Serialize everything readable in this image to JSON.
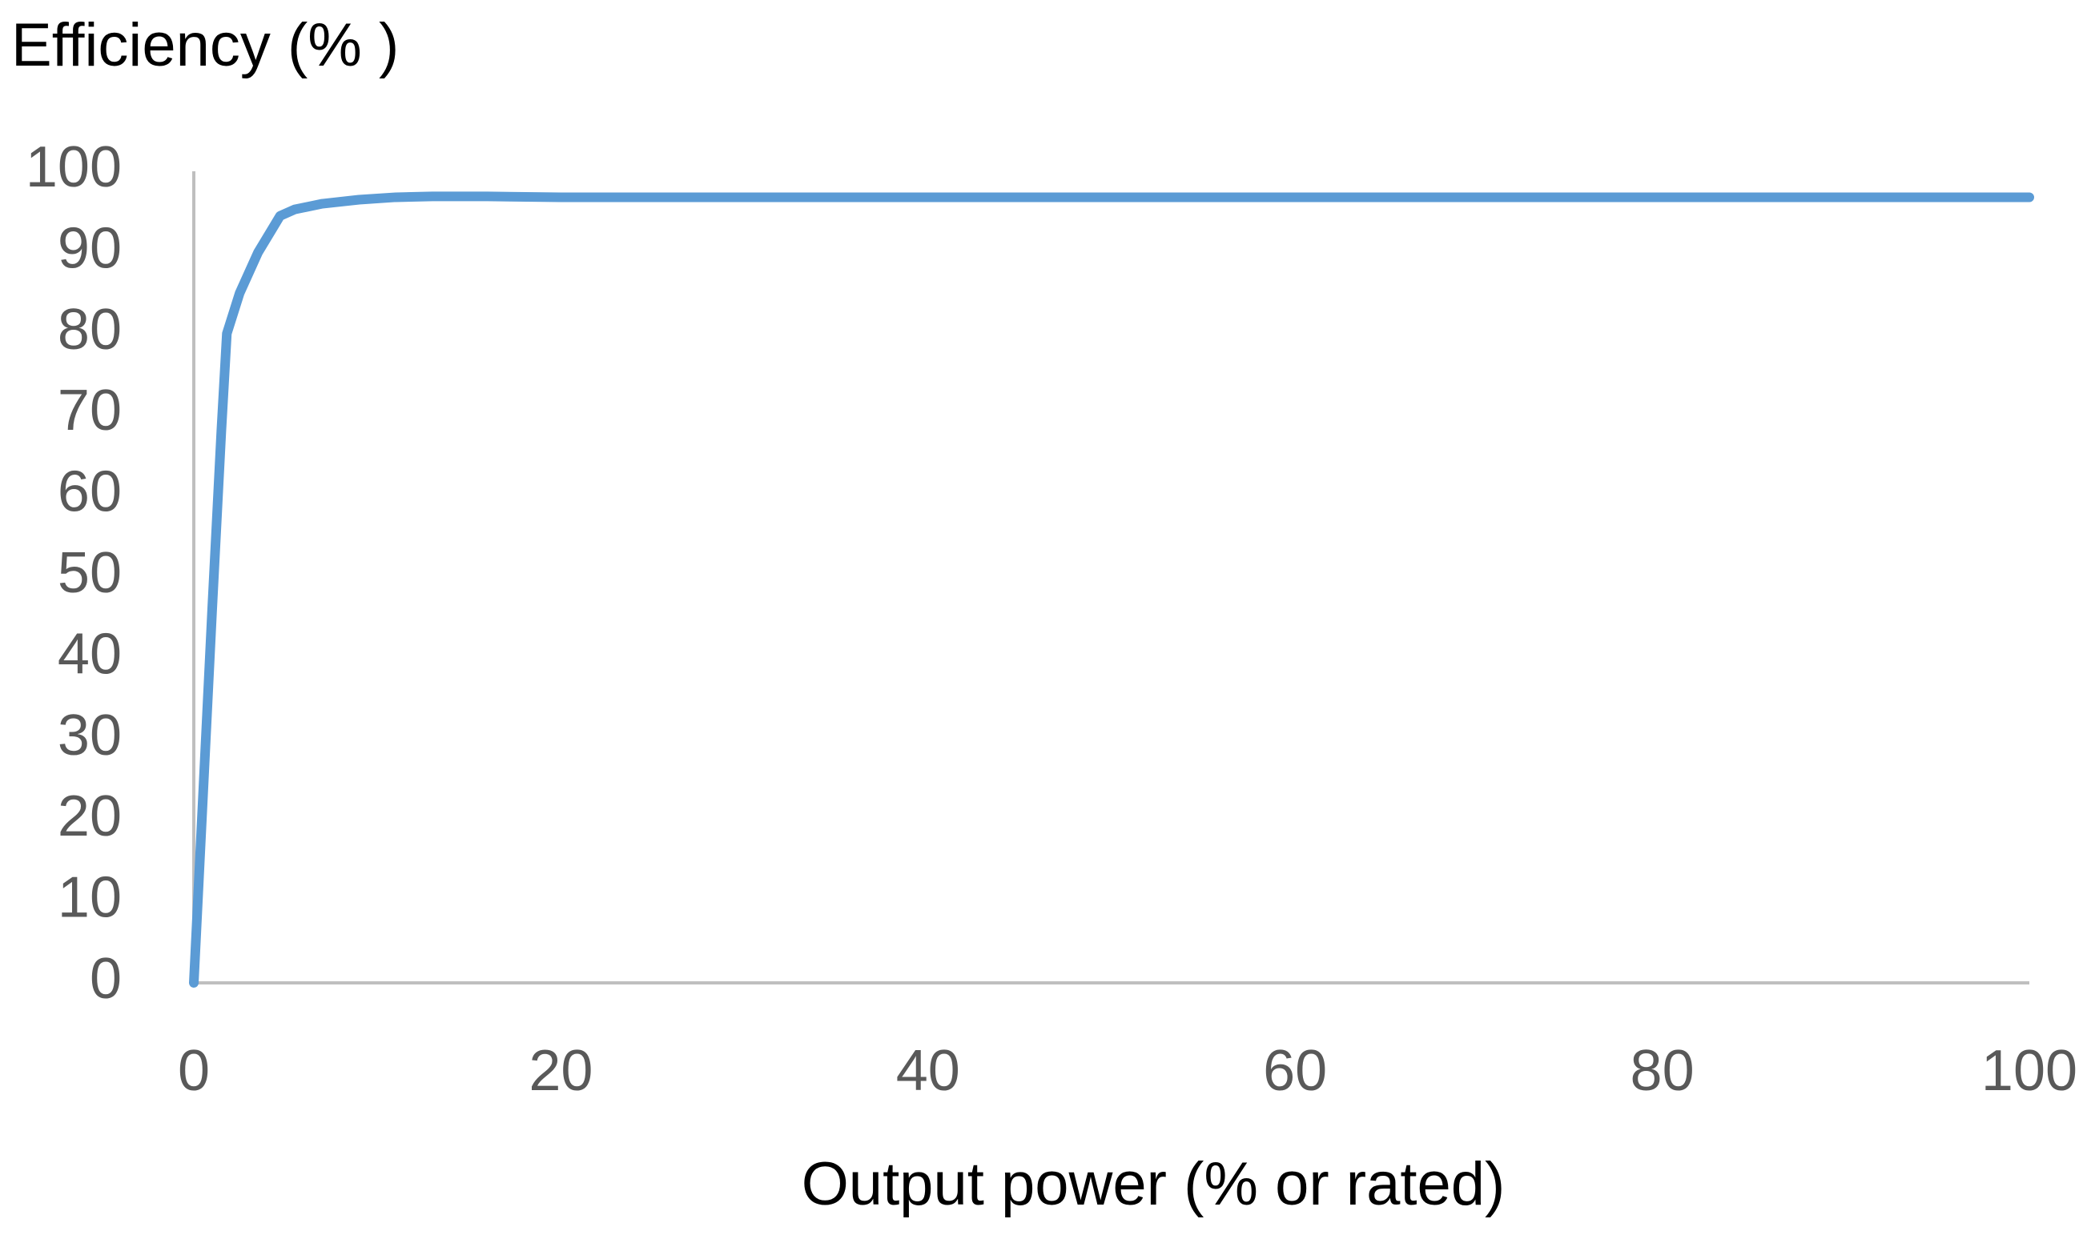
{
  "chart_data": {
    "type": "line",
    "ylabel": "Efficiency (% )",
    "xlabel": "Output power (% or rated)",
    "xlim": [
      0,
      100
    ],
    "ylim": [
      0,
      100
    ],
    "xticks": [
      0,
      20,
      40,
      60,
      80,
      100
    ],
    "yticks": [
      0,
      10,
      20,
      30,
      40,
      50,
      60,
      70,
      80,
      90,
      100
    ],
    "grid": false,
    "series": [
      {
        "color": "#5b9bd5",
        "x": [
          0,
          0.5,
          1.0,
          1.5,
          1.8,
          2.5,
          3.5,
          4.3,
          4.7,
          5.5,
          7,
          9,
          11,
          13,
          16,
          20,
          40,
          60,
          80,
          100
        ],
        "values": [
          0,
          23,
          46,
          68,
          80,
          85,
          90,
          93,
          94.5,
          95.3,
          96,
          96.5,
          96.8,
          96.9,
          96.9,
          96.8,
          96.8,
          96.8,
          96.8,
          96.8
        ]
      }
    ]
  }
}
